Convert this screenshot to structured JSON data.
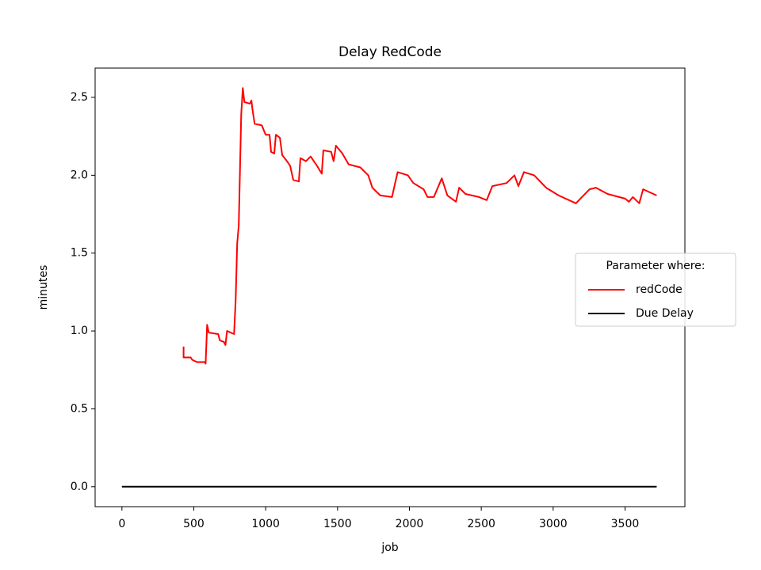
{
  "chart_data": {
    "type": "line",
    "title": "Delay RedCode",
    "x_label": "job",
    "y_label": "minutes",
    "xlim": [
      -186.5,
      3916.5
    ],
    "xticks": [
      0,
      500,
      1000,
      1500,
      2000,
      2500,
      3000,
      3500
    ],
    "ylim": [
      -0.128,
      2.688
    ],
    "yticks": [
      {
        "value": 0,
        "label": "0.0"
      },
      0.5,
      {
        "value": 1,
        "label": "1.0"
      },
      1.5,
      {
        "value": 2,
        "label": "2.0"
      },
      2.5
    ],
    "grid": false,
    "legend_title": "Parameter where:",
    "legend_position": "center right",
    "series": [
      {
        "name": "redCode",
        "color": "#ff0000",
        "x": [
          429,
          429,
          478,
          489,
          522,
          577,
          582,
          593,
          604,
          670,
          681,
          709,
          720,
          731,
          780,
          791,
          802,
          813,
          830,
          841,
          852,
          890,
          901,
          907,
          923,
          973,
          1000,
          1027,
          1038,
          1060,
          1071,
          1099,
          1115,
          1148,
          1170,
          1192,
          1231,
          1242,
          1280,
          1313,
          1357,
          1390,
          1401,
          1456,
          1473,
          1489,
          1533,
          1577,
          1659,
          1714,
          1742,
          1797,
          1879,
          1918,
          1989,
          2027,
          2099,
          2126,
          2170,
          2225,
          2264,
          2324,
          2346,
          2390,
          2484,
          2538,
          2577,
          2676,
          2731,
          2758,
          2797,
          2868,
          2951,
          3038,
          3159,
          3253,
          3297,
          3379,
          3500,
          3527,
          3555,
          3599,
          3626,
          3720
        ],
        "values": [
          0.9,
          0.83,
          0.83,
          0.815,
          0.8,
          0.8,
          0.79,
          1.04,
          0.99,
          0.98,
          0.94,
          0.93,
          0.91,
          1.0,
          0.98,
          1.2,
          1.56,
          1.68,
          2.39,
          2.56,
          2.47,
          2.46,
          2.48,
          2.43,
          2.33,
          2.32,
          2.26,
          2.26,
          2.15,
          2.14,
          2.26,
          2.24,
          2.13,
          2.09,
          2.06,
          1.97,
          1.96,
          2.11,
          2.09,
          2.12,
          2.06,
          2.01,
          2.16,
          2.15,
          2.09,
          2.19,
          2.14,
          2.07,
          2.05,
          2.0,
          1.92,
          1.87,
          1.86,
          2.02,
          2.0,
          1.95,
          1.91,
          1.86,
          1.86,
          1.98,
          1.87,
          1.83,
          1.92,
          1.88,
          1.86,
          1.84,
          1.93,
          1.95,
          2.0,
          1.93,
          2.02,
          2.0,
          1.92,
          1.87,
          1.82,
          1.91,
          1.92,
          1.88,
          1.85,
          1.83,
          1.86,
          1.82,
          1.91,
          1.87
        ]
      },
      {
        "name": "Due Delay",
        "color": "#000000",
        "x": [
          0,
          3720
        ],
        "values": [
          0,
          0
        ]
      }
    ]
  }
}
